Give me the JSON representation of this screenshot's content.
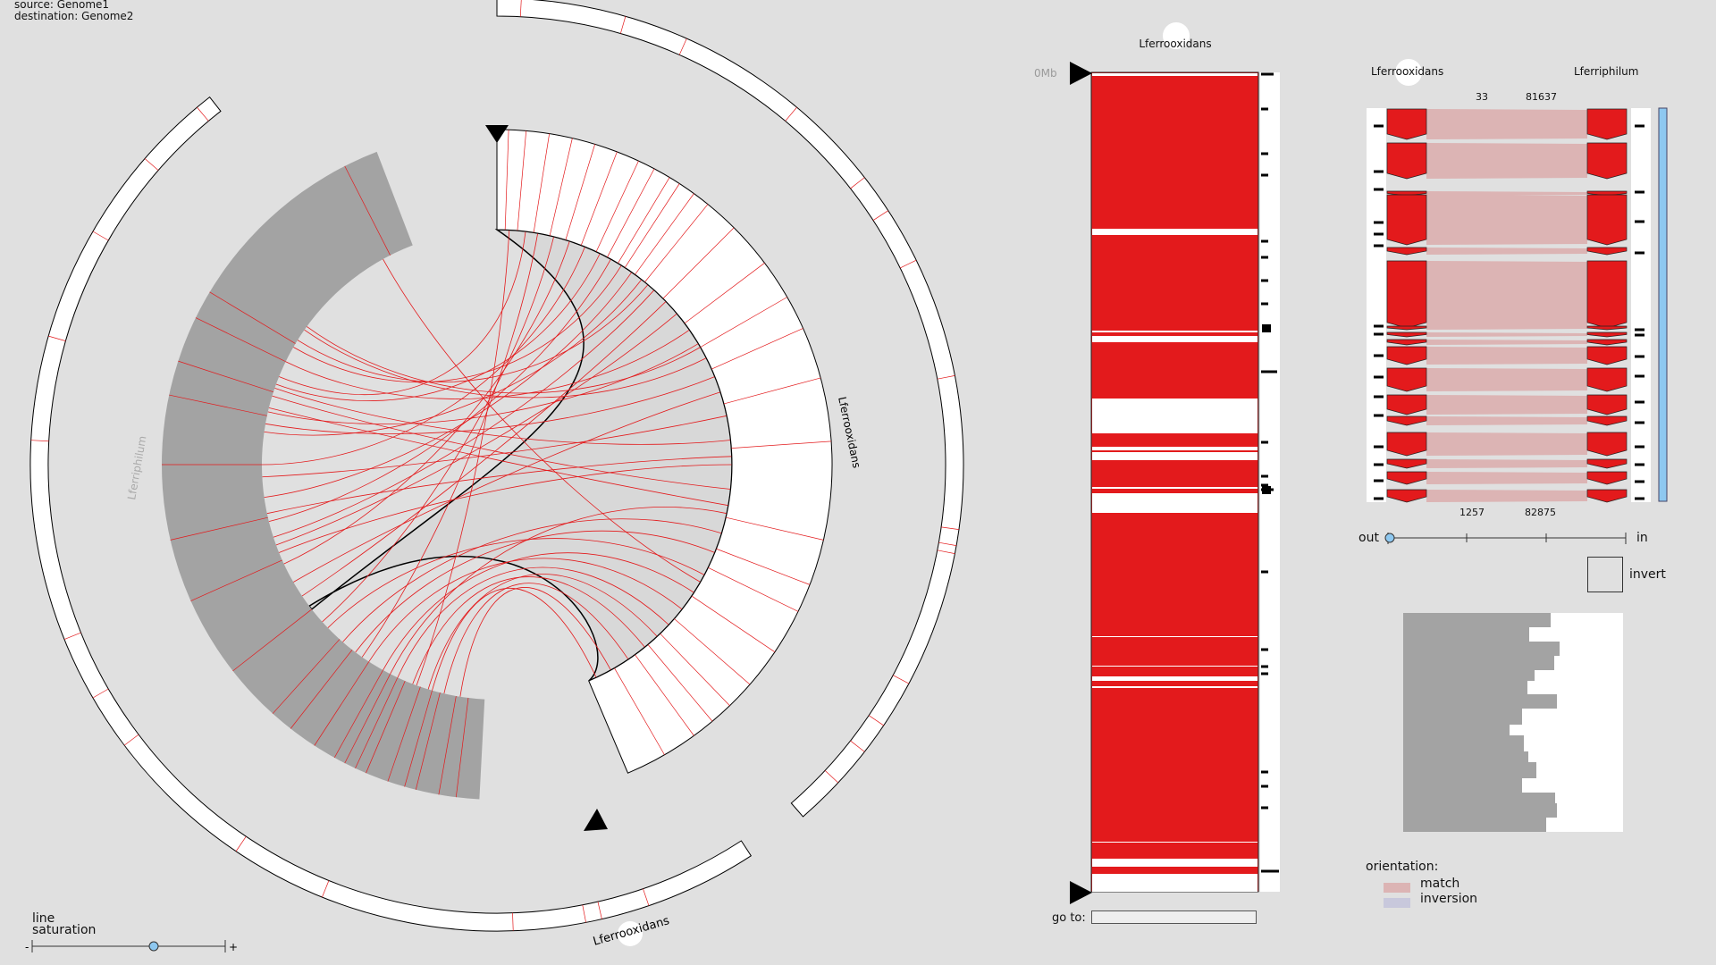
{
  "header": {
    "source": "source: Genome1",
    "destination": "destination: Genome2"
  },
  "circos": {
    "outer_label": "Lferrooxidans",
    "inner_right_label": "Lferrooxidans",
    "inner_left_label": "Lferriphilum"
  },
  "line_saturation": {
    "label_line1": "line",
    "label_line2": "saturation",
    "minus": "-",
    "plus": "+",
    "value": 0.5
  },
  "column": {
    "title": "Lferrooxidans",
    "scale_label": "0Mb"
  },
  "goto": {
    "label": "go to:",
    "value": ""
  },
  "detail": {
    "left_label": "Lferrooxidans",
    "right_label": "Lferriphilum",
    "top_start": "33",
    "top_end": "81637",
    "bottom_start": "1257",
    "bottom_end": "82875"
  },
  "zoom": {
    "out_label": "out",
    "in_label": "in",
    "value": 0.0
  },
  "invert": {
    "label": "invert"
  },
  "orientation": {
    "title": "orientation:",
    "match_label": "match",
    "inversion_label": "inversion",
    "match_color": "#dcb4b4",
    "inversion_color": "#c8c8dc"
  },
  "colors": {
    "block": "#e31a1c",
    "link": "#e31a1c",
    "background": "#e0e0e0",
    "scrollbar": "#8ec8f0"
  }
}
